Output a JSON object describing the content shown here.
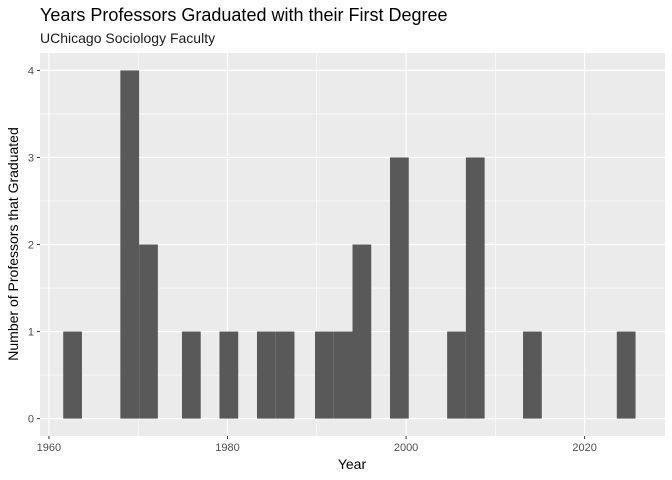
{
  "chart_data": {
    "type": "bar",
    "title": "Years Professors Graduated with their First Degree",
    "subtitle": "UChicago Sociology Faculty",
    "xlabel": "Year",
    "ylabel": "Number of Professors that Graduated",
    "xlim": [
      1959,
      2029
    ],
    "ylim": [
      -0.2,
      4.2
    ],
    "x_ticks": [
      1960,
      1980,
      2000,
      2020
    ],
    "y_ticks": [
      0,
      1,
      2,
      3,
      4
    ],
    "bin_width": 2.1,
    "grid": true,
    "bar_color": "#595959",
    "panel_color": "#ebebeb",
    "bins": [
      {
        "start": 1961.6,
        "end": 1963.7,
        "count": 1
      },
      {
        "start": 1968.0,
        "end": 1970.1,
        "count": 4
      },
      {
        "start": 1970.1,
        "end": 1972.2,
        "count": 2
      },
      {
        "start": 1974.9,
        "end": 1977.0,
        "count": 1
      },
      {
        "start": 1979.1,
        "end": 1981.2,
        "count": 1
      },
      {
        "start": 1983.3,
        "end": 1985.4,
        "count": 1
      },
      {
        "start": 1985.4,
        "end": 1987.5,
        "count": 1
      },
      {
        "start": 1989.8,
        "end": 1991.9,
        "count": 1
      },
      {
        "start": 1991.9,
        "end": 1994.0,
        "count": 1
      },
      {
        "start": 1994.0,
        "end": 1996.1,
        "count": 2
      },
      {
        "start": 1998.2,
        "end": 2000.3,
        "count": 3
      },
      {
        "start": 2004.6,
        "end": 2006.7,
        "count": 1
      },
      {
        "start": 2006.7,
        "end": 2008.8,
        "count": 3
      },
      {
        "start": 2013.1,
        "end": 2015.2,
        "count": 1
      },
      {
        "start": 2023.6,
        "end": 2025.7,
        "count": 1
      }
    ]
  }
}
